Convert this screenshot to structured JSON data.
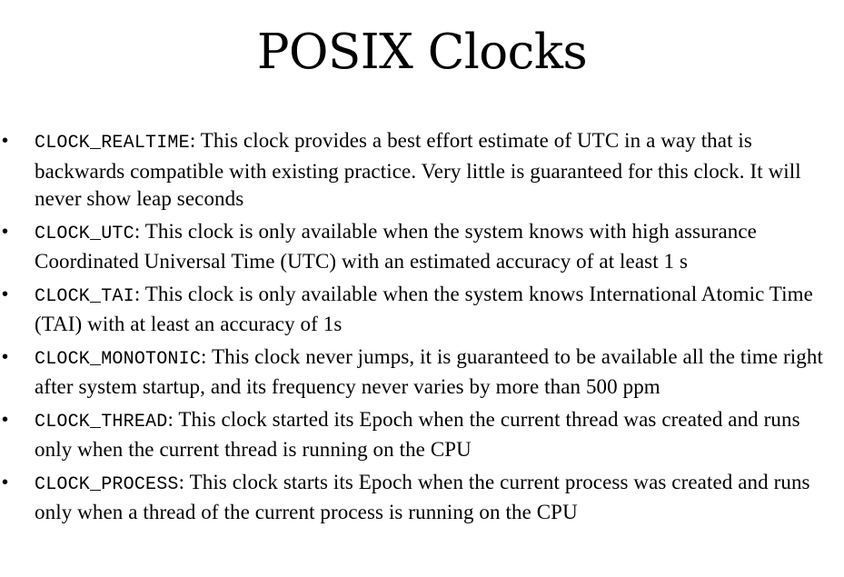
{
  "slide": {
    "title": "POSIX Clocks",
    "bullet_glyph": "•",
    "items": [
      {
        "code": "CLOCK_REALTIME",
        "text": ": This clock provides a best effort estimate of UTC in a way that is backwards compatible with existing practice. Very little is guaranteed for this clock. It will never show leap seconds"
      },
      {
        "code": "CLOCK_UTC",
        "text": ": This clock is only available when the system knows with high assurance Coordinated Universal Time (UTC) with an estimated accuracy of at least 1 s"
      },
      {
        "code": "CLOCK_TAI",
        "text": ": This clock is only available when the system knows International Atomic Time (TAI) with at least an accuracy of 1s"
      },
      {
        "code": "CLOCK_MONOTONIC",
        "text": ": This clock never jumps, it is guaranteed to be available all the time right after system startup, and its frequency never varies by more than 500 ppm"
      },
      {
        "code": "CLOCK_THREAD",
        "text": ": This clock started its Epoch when the current thread was created and runs only when the current thread is running on the CPU"
      },
      {
        "code": "CLOCK_PROCESS",
        "text": ": This clock starts its Epoch when the current process was created and runs only when a thread of the current process is running on the CPU"
      }
    ]
  }
}
